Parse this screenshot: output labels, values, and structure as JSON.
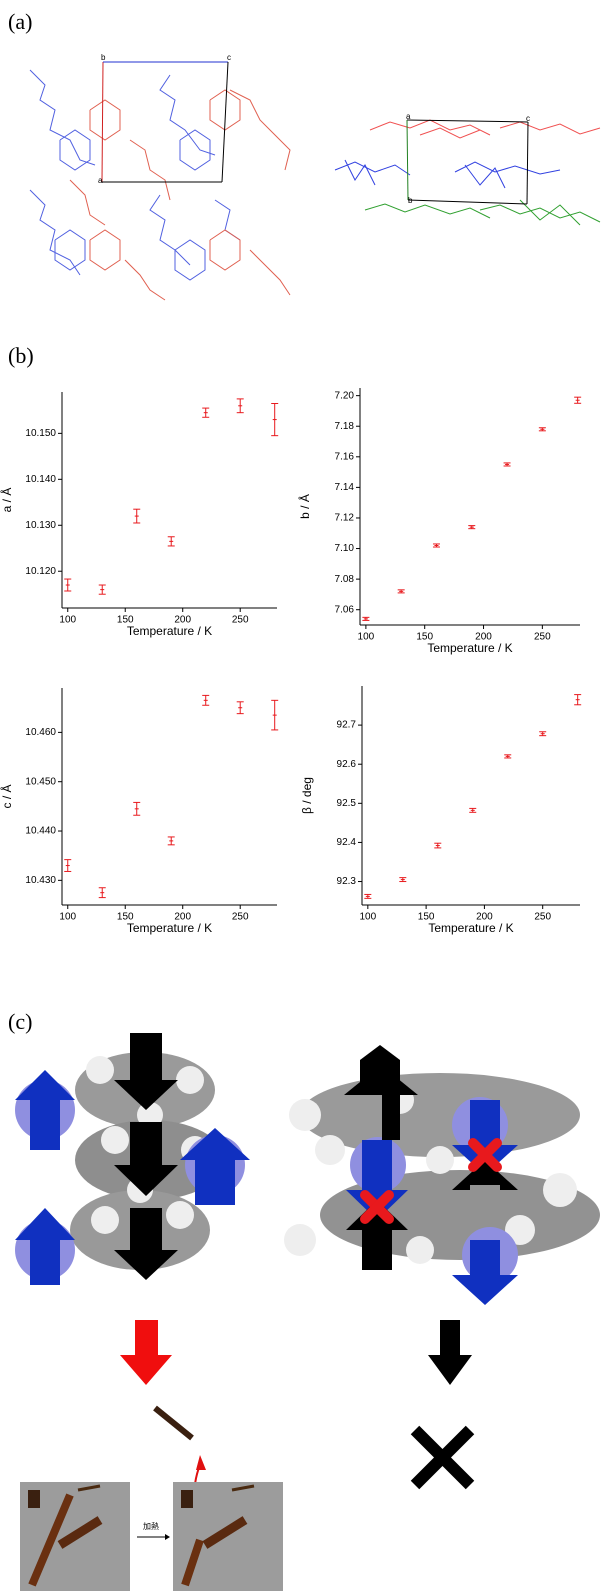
{
  "panel_labels": [
    "(a)",
    "(b)",
    "(c)"
  ],
  "cell_labels_left": [
    "b",
    "c",
    "a"
  ],
  "cell_labels_right": [
    "a",
    "c",
    "b"
  ],
  "heating_label": "加熱",
  "chart_data": [
    {
      "type": "scatter",
      "xlabel": "Temperature / K",
      "ylabel": "a / Å",
      "color": "#e8191d",
      "x": [
        100,
        130,
        160,
        190,
        220,
        250,
        280
      ],
      "values": [
        10.117,
        10.116,
        10.132,
        10.1265,
        10.1545,
        10.156,
        10.153
      ],
      "errors": [
        0.0013,
        0.001,
        0.0015,
        0.001,
        0.001,
        0.0015,
        0.0035
      ],
      "xlim": [
        95,
        282
      ],
      "xticks": [
        100,
        150,
        200,
        250
      ],
      "ylim": [
        10.112,
        10.159
      ],
      "yticks": [
        {
          "value": 10.12,
          "label": "10.120"
        },
        {
          "value": 10.13,
          "label": "10.130"
        },
        {
          "value": 10.14,
          "label": "10.140"
        },
        {
          "value": 10.15,
          "label": "10.150"
        }
      ]
    },
    {
      "type": "scatter",
      "xlabel": "Temperature / K",
      "ylabel": "b / Å",
      "color": "#e8191d",
      "x": [
        100,
        130,
        160,
        190,
        220,
        250,
        280
      ],
      "values": [
        7.054,
        7.072,
        7.102,
        7.114,
        7.155,
        7.178,
        7.197
      ],
      "errors": [
        0.001,
        0.001,
        0.001,
        0.001,
        0.001,
        0.001,
        0.002
      ],
      "xlim": [
        95,
        282
      ],
      "xticks": [
        100,
        150,
        200,
        250
      ],
      "ylim": [
        7.05,
        7.205
      ],
      "yticks": [
        7.06,
        7.08,
        {
          "value": 7.1,
          "label": "7.10"
        },
        7.12,
        7.14,
        7.16,
        7.18,
        {
          "value": 7.2,
          "label": "7.20"
        }
      ]
    },
    {
      "type": "scatter",
      "xlabel": "Temperature / K",
      "ylabel": "c / Å",
      "color": "#e8191d",
      "x": [
        100,
        130,
        160,
        190,
        220,
        250,
        280
      ],
      "values": [
        10.433,
        10.4275,
        10.4445,
        10.438,
        10.4665,
        10.465,
        10.4635
      ],
      "errors": [
        0.0012,
        0.001,
        0.0013,
        0.0008,
        0.001,
        0.0012,
        0.003
      ],
      "xlim": [
        95,
        282
      ],
      "xticks": [
        100,
        150,
        200,
        250
      ],
      "ylim": [
        10.425,
        10.469
      ],
      "yticks": [
        {
          "value": 10.43,
          "label": "10.430"
        },
        {
          "value": 10.44,
          "label": "10.440"
        },
        {
          "value": 10.45,
          "label": "10.450"
        },
        {
          "value": 10.46,
          "label": "10.460"
        }
      ]
    },
    {
      "type": "scatter",
      "xlabel": "Temperature / K",
      "ylabel": "β / deg",
      "color": "#e8191d",
      "x": [
        100,
        130,
        160,
        190,
        220,
        250,
        280
      ],
      "values": [
        92.262,
        92.305,
        92.392,
        92.482,
        92.62,
        92.678,
        92.765
      ],
      "errors": [
        0.005,
        0.005,
        0.006,
        0.005,
        0.004,
        0.005,
        0.013
      ],
      "xlim": [
        95,
        282
      ],
      "xticks": [
        100,
        150,
        200,
        250
      ],
      "ylim": [
        92.24,
        92.8
      ],
      "yticks": [
        92.3,
        92.4,
        92.5,
        92.6,
        92.7
      ]
    }
  ]
}
